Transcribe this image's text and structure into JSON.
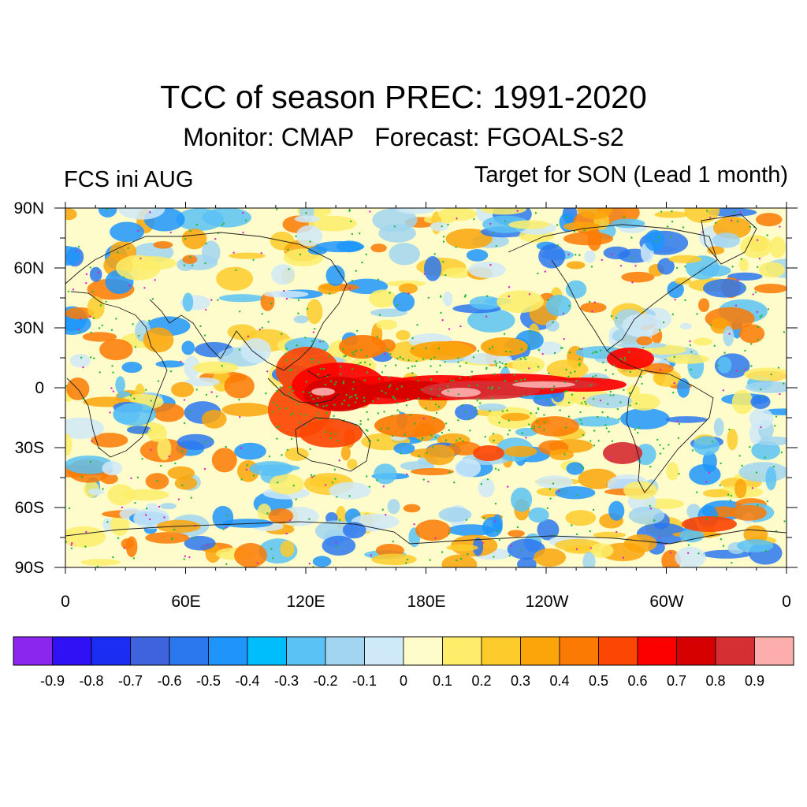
{
  "title": "TCC of season PREC: 1991-2020",
  "subtitle": "Monitor: CMAP   Forecast: FGOALS-s2",
  "left_label": "FCS ini AUG",
  "right_label": "Target for SON (Lead 1 month)",
  "lat_labels": [
    "90N",
    "60N",
    "30N",
    "0",
    "30S",
    "60S",
    "90S"
  ],
  "lon_labels": [
    "0",
    "60E",
    "120E",
    "180E",
    "120W",
    "60W",
    "0"
  ],
  "colorbar": {
    "colors": [
      "#8a26ee",
      "#3010f5",
      "#1b2df2",
      "#3f63dd",
      "#2b77ee",
      "#1f95fb",
      "#00bdfb",
      "#5bc2f5",
      "#a1d5f0",
      "#cfe9f8",
      "#fffccb",
      "#fded6a",
      "#fdcb2c",
      "#fca50a",
      "#fb7a04",
      "#fc4704",
      "#fc0000",
      "#d60000",
      "#d62f33",
      "#feadad"
    ],
    "labels": [
      "-0.9",
      "-0.8",
      "-0.7",
      "-0.6",
      "-0.5",
      "-0.4",
      "-0.3",
      "-0.2",
      "-0.1",
      "0",
      "0.1",
      "0.2",
      "0.3",
      "0.4",
      "0.5",
      "0.6",
      "0.7",
      "0.8",
      "0.9"
    ]
  },
  "map": {
    "lat_range": [
      -90,
      90
    ],
    "lon_range": [
      0,
      360
    ],
    "stipple_green": "#22bb33",
    "stipple_magenta": "#e020c8",
    "coastline_color": "#1e1e1e"
  }
}
